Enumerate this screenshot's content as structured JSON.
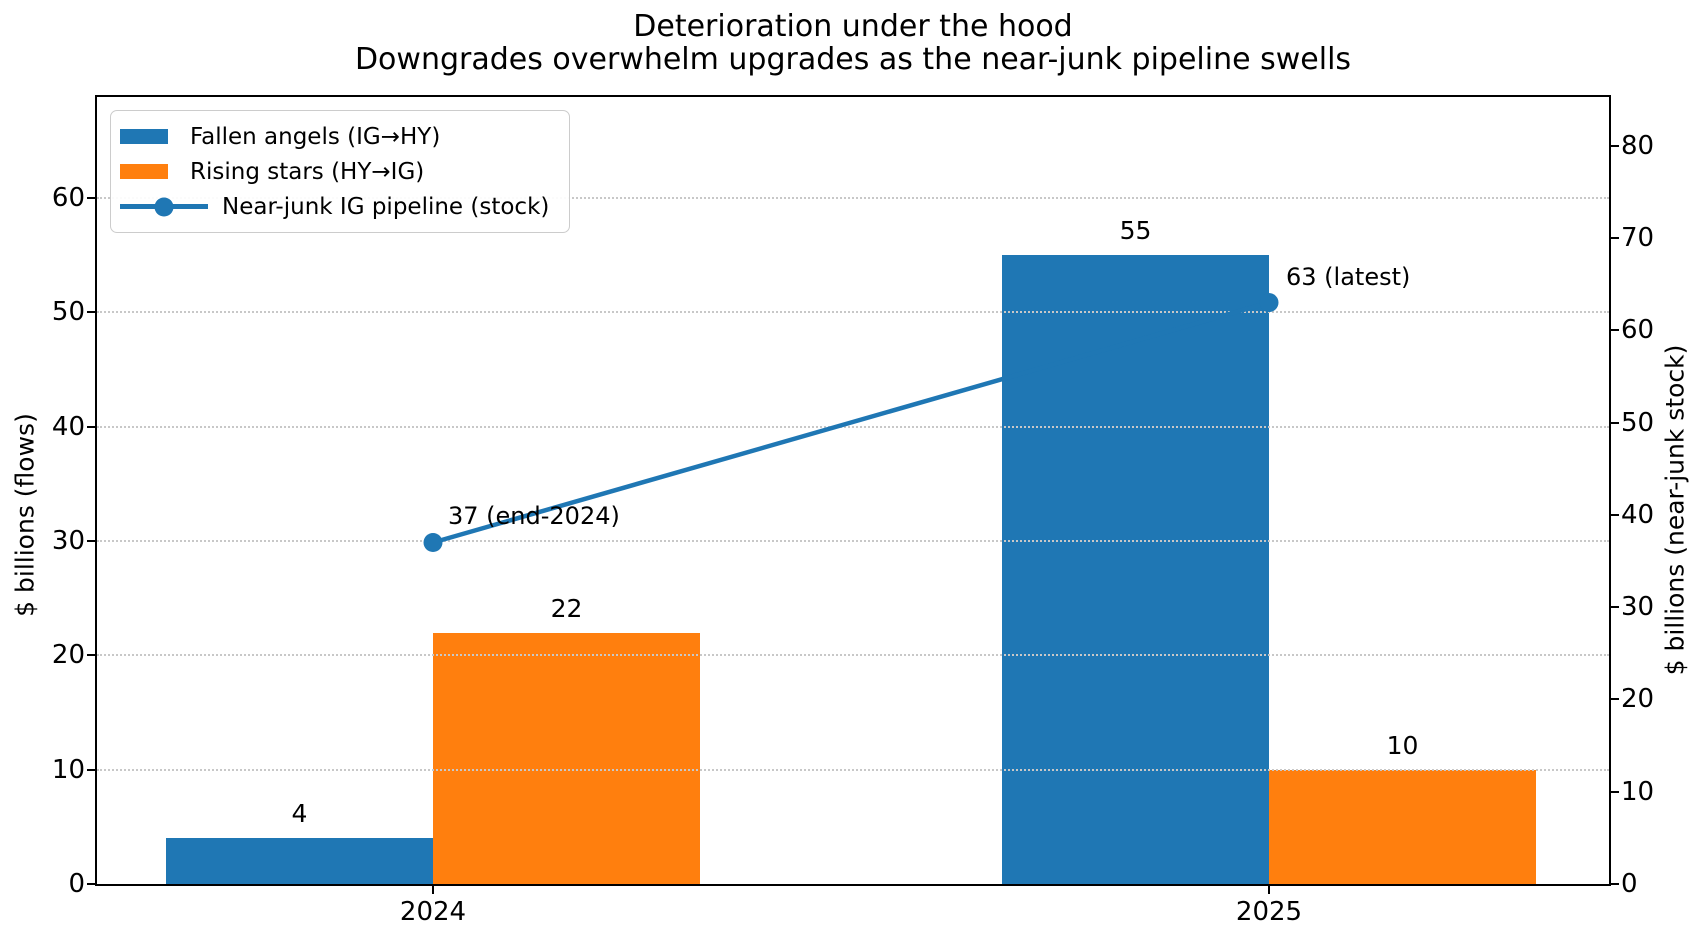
{
  "title": {
    "line1": "Deterioration under the hood",
    "line2": "Downgrades overwhelm upgrades as the near-junk pipeline swells"
  },
  "legend": {
    "items": [
      {
        "label": "Fallen angels (IG→HY)",
        "handle": "patch",
        "color": "#1f77b4"
      },
      {
        "label": "Rising stars (HY→IG)",
        "handle": "patch",
        "color": "#ff7f0e"
      },
      {
        "label": "Near-junk IG pipeline (stock)",
        "handle": "line-marker",
        "color": "#1f77b4"
      }
    ]
  },
  "chart_data": {
    "type": "bar",
    "subtype": "grouped bars with line on secondary axis",
    "categories": [
      "2024",
      "2025"
    ],
    "series": [
      {
        "name": "Fallen angels (IG→HY)",
        "kind": "bar",
        "axis": "left",
        "color": "#1f77b4",
        "values": [
          4,
          55
        ],
        "value_labels": [
          "4",
          "55"
        ]
      },
      {
        "name": "Rising stars (HY→IG)",
        "kind": "bar",
        "axis": "left",
        "color": "#ff7f0e",
        "values": [
          22,
          10
        ],
        "value_labels": [
          "22",
          "10"
        ]
      },
      {
        "name": "Near-junk IG pipeline (stock)",
        "kind": "line",
        "axis": "right",
        "color": "#1f77b4",
        "values": [
          37,
          63
        ],
        "point_labels": [
          "37 (end-2024)",
          "63 (latest)"
        ]
      }
    ],
    "left_axis": {
      "label": "$ billions (flows)",
      "ticks": [
        0,
        10,
        20,
        30,
        40,
        50,
        60
      ],
      "max": 68.85
    },
    "right_axis": {
      "label": "$ billions (near-junk stock)",
      "ticks": [
        0,
        10,
        20,
        30,
        40,
        50,
        60,
        70,
        80
      ],
      "max": 85.27
    },
    "grid": {
      "axis": "y",
      "style": "dotted",
      "at_left_ticks": [
        10,
        20,
        30,
        40,
        50,
        60
      ]
    }
  }
}
